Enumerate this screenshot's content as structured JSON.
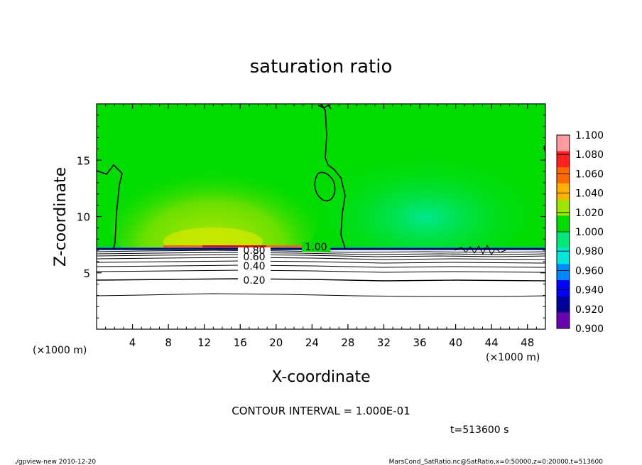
{
  "chart_data": {
    "type": "heatmap",
    "title": "saturation ratio",
    "xlabel": "X-coordinate",
    "ylabel": "Z-coordinate",
    "x_unit": "(×1000 m)",
    "z_unit": "(×1000 m)",
    "x_ticks": [
      4,
      8,
      12,
      16,
      20,
      24,
      28,
      32,
      36,
      40,
      44,
      48
    ],
    "y_ticks": [
      5,
      10,
      15
    ],
    "xlim": [
      0,
      50
    ],
    "ylim": [
      0,
      20
    ],
    "colorbar": {
      "levels": [
        "1.100",
        "1.080",
        "1.060",
        "1.040",
        "1.020",
        "1.000",
        "0.980",
        "0.960",
        "0.940",
        "0.920",
        "0.900"
      ],
      "colors": [
        "#ff9aa0",
        "#ff2020",
        "#ff6a00",
        "#ffb000",
        "#9ee600",
        "#00dc00",
        "#00e878",
        "#00e8d8",
        "#0088ff",
        "#0000ff",
        "#0000a0",
        "#6a00b0"
      ]
    },
    "contour_labels": [
      {
        "text": "1.00",
        "x": 26,
        "z": 7.2
      },
      {
        "text": "0.80",
        "x": 17.5,
        "z": 6.8
      },
      {
        "text": "0.60",
        "x": 17.5,
        "z": 6.3
      },
      {
        "text": "0.40",
        "x": 17.5,
        "z": 5.7
      },
      {
        "text": "0.20",
        "x": 17.5,
        "z": 4.4
      }
    ],
    "annotations": {
      "contour_interval": "CONTOUR INTERVAL = 1.000E-01",
      "time": "t=513600 s"
    }
  },
  "footer": {
    "left": "./gpview-new  2010-12-20",
    "right": "MarsCond_SatRatio.nc@SatRatio,x=0:50000,z=0:20000,t=513600"
  }
}
